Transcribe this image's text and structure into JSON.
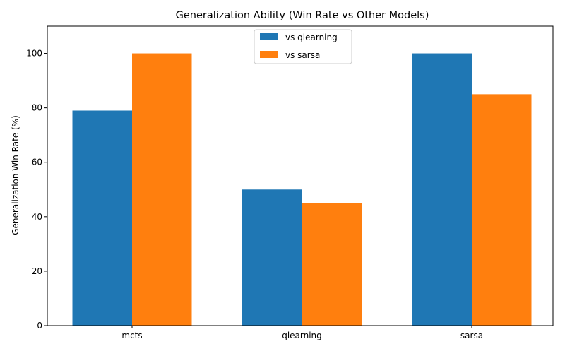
{
  "chart_data": {
    "type": "bar",
    "title": "Generalization Ability (Win Rate vs Other Models)",
    "xlabel": "",
    "ylabel": "Generalization Win Rate (%)",
    "categories": [
      "mcts",
      "qlearning",
      "sarsa"
    ],
    "series": [
      {
        "name": "vs qlearning",
        "color": "#1f77b4",
        "values": [
          79,
          50,
          100
        ]
      },
      {
        "name": "vs sarsa",
        "color": "#ff7f0e",
        "values": [
          100,
          45,
          85
        ]
      }
    ],
    "ylim": [
      0,
      110
    ],
    "yticks": [
      0,
      20,
      40,
      60,
      80,
      100
    ],
    "grid": false,
    "legend_position": "upper center"
  }
}
